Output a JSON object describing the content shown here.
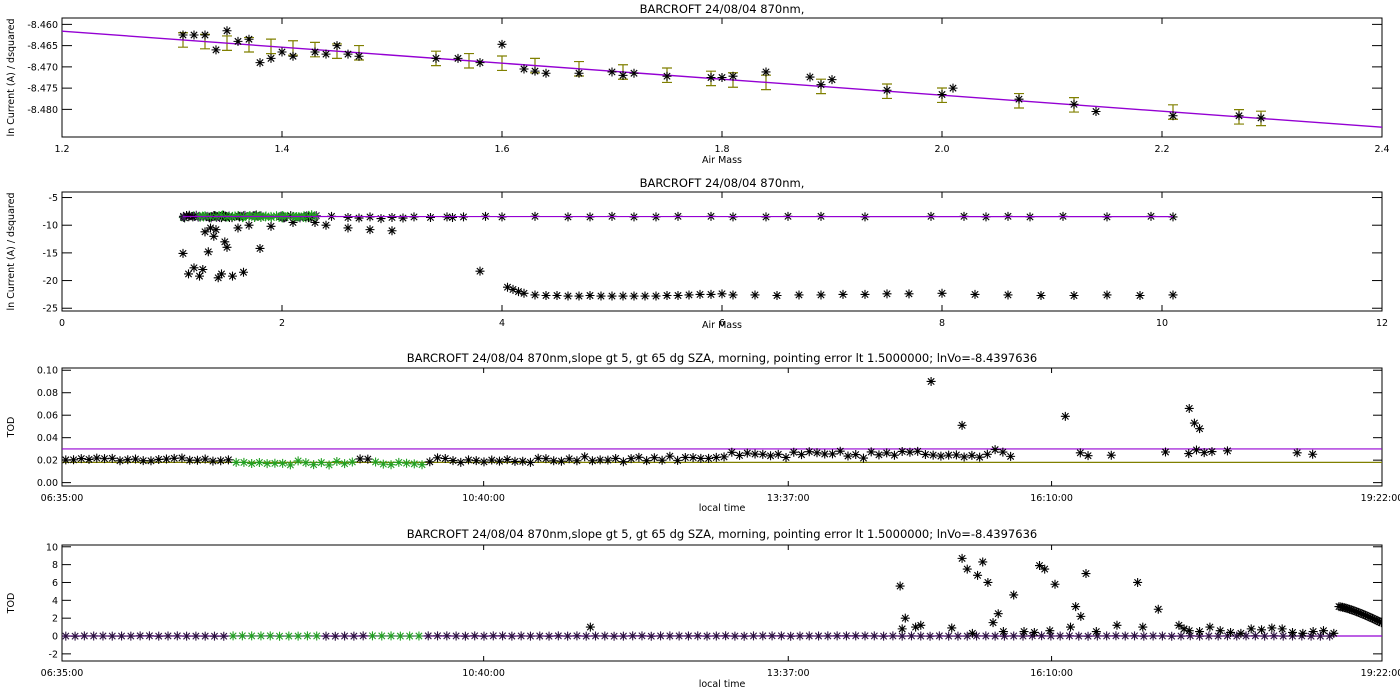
{
  "colors": {
    "axis": "#000000",
    "fit": "#9400d3",
    "errorbar": "#808000",
    "green": "#22a022",
    "olive": "#808000",
    "points": "#000000"
  },
  "chart_data": [
    {
      "id": "p1",
      "type": "scatter",
      "title": "BARCROFT 24/08/04 870nm,",
      "xlabel": "Air Mass",
      "ylabel": "ln Current (A) / dsquared",
      "xlim": [
        1.2,
        2.4
      ],
      "ylim": [
        -8.4865,
        -8.4585
      ],
      "xticks": [
        1.2,
        1.4,
        1.6,
        1.8,
        2.0,
        2.2,
        2.4
      ],
      "xtick_labels": [
        "1.2",
        "1.4",
        "1.6",
        "1.8",
        "2.0",
        "2.2",
        "2.4"
      ],
      "yticks": [
        -8.48,
        -8.475,
        -8.47,
        -8.465,
        -8.46
      ],
      "ytick_labels": [
        "-8.480",
        "-8.475",
        "-8.470",
        "-8.465",
        "-8.460"
      ],
      "fit_line": {
        "x": [
          1.2,
          2.4
        ],
        "y": [
          -8.4616,
          -8.4842
        ]
      },
      "errorbars": {
        "x": [
          1.31,
          1.33,
          1.35,
          1.37,
          1.39,
          1.41,
          1.43,
          1.45,
          1.47,
          1.54,
          1.57,
          1.6,
          1.63,
          1.67,
          1.71,
          1.75,
          1.79,
          1.81,
          1.84,
          1.89,
          1.95,
          2.0,
          2.07,
          2.12,
          2.21,
          2.27,
          2.29
        ],
        "half": 0.0017
      },
      "points": {
        "x": [
          1.31,
          1.32,
          1.33,
          1.34,
          1.35,
          1.36,
          1.37,
          1.38,
          1.39,
          1.4,
          1.41,
          1.43,
          1.44,
          1.45,
          1.46,
          1.47,
          1.54,
          1.56,
          1.58,
          1.6,
          1.62,
          1.63,
          1.64,
          1.67,
          1.7,
          1.71,
          1.72,
          1.75,
          1.79,
          1.8,
          1.81,
          1.84,
          1.88,
          1.89,
          1.9,
          1.95,
          2.0,
          2.01,
          2.07,
          2.12,
          2.14,
          2.21,
          2.27,
          2.29
        ],
        "y": [
          -8.4625,
          -8.4625,
          -8.4625,
          -8.466,
          -8.4615,
          -8.464,
          -8.4635,
          -8.469,
          -8.468,
          -8.4665,
          -8.4675,
          -8.4665,
          -8.467,
          -8.465,
          -8.467,
          -8.4675,
          -8.468,
          -8.468,
          -8.469,
          -8.4647,
          -8.4705,
          -8.471,
          -8.4715,
          -8.4715,
          -8.4712,
          -8.472,
          -8.4715,
          -8.4722,
          -8.4725,
          -8.4725,
          -8.4722,
          -8.4712,
          -8.4724,
          -8.4742,
          -8.473,
          -8.4755,
          -8.4765,
          -8.475,
          -8.4776,
          -8.4788,
          -8.4805,
          -8.4815,
          -8.4815,
          -8.482
        ]
      }
    },
    {
      "id": "p2",
      "type": "scatter",
      "title": "BARCROFT 24/08/04 870nm,",
      "xlabel": "Air Mass",
      "ylabel": "ln Current (A) / dsquared",
      "xlim": [
        0,
        12
      ],
      "ylim": [
        -25.5,
        -4
      ],
      "xticks": [
        0,
        2,
        4,
        6,
        8,
        10,
        12
      ],
      "xtick_labels": [
        "0",
        "2",
        "4",
        "6",
        "8",
        "10",
        "12"
      ],
      "yticks": [
        -25,
        -20,
        -15,
        -10,
        -5
      ],
      "ytick_labels": [
        "-25",
        "-20",
        "-15",
        "-10",
        "-5"
      ],
      "fit_line": {
        "x": [
          1.1,
          10.1
        ],
        "y": [
          -8.43,
          -8.45
        ]
      },
      "series": [
        {
          "color": "black",
          "x": [
            2.45,
            2.6,
            2.7,
            2.8,
            2.9,
            3.0,
            3.1,
            3.2,
            3.35,
            3.5,
            3.55,
            3.65,
            3.85,
            4.0,
            4.3,
            4.6,
            4.8,
            5.0,
            5.2,
            5.4,
            5.6,
            5.9,
            6.1,
            6.4,
            6.6,
            6.9,
            7.3,
            7.9,
            8.2,
            8.4,
            8.6,
            8.8,
            9.1,
            9.5,
            9.9,
            10.1
          ],
          "y": [
            -8.4,
            -8.6,
            -8.7,
            -8.5,
            -8.8,
            -8.6,
            -8.7,
            -8.5,
            -8.6,
            -8.5,
            -8.6,
            -8.5,
            -8.4,
            -8.5,
            -8.4,
            -8.5,
            -8.5,
            -8.4,
            -8.5,
            -8.5,
            -8.4,
            -8.4,
            -8.5,
            -8.5,
            -8.4,
            -8.4,
            -8.5,
            -8.4,
            -8.4,
            -8.5,
            -8.4,
            -8.5,
            -8.4,
            -8.5,
            -8.4,
            -8.5
          ]
        },
        {
          "color": "black",
          "x": [
            3.8,
            4.05,
            4.1,
            4.15,
            4.2,
            4.3,
            4.4,
            4.5,
            4.6,
            4.7,
            4.8,
            4.9,
            5.0,
            5.1,
            5.2,
            5.3,
            5.4,
            5.5,
            5.6,
            5.7,
            5.8,
            5.9,
            6.0,
            6.1,
            6.3,
            6.5,
            6.7,
            6.9,
            7.1,
            7.3,
            7.5,
            7.7,
            8.0,
            8.3,
            8.6,
            8.9,
            9.2,
            9.5,
            9.8,
            10.1
          ],
          "y": [
            -18.3,
            -21.2,
            -21.6,
            -22.0,
            -22.3,
            -22.6,
            -22.7,
            -22.7,
            -22.8,
            -22.8,
            -22.7,
            -22.8,
            -22.8,
            -22.8,
            -22.8,
            -22.8,
            -22.8,
            -22.7,
            -22.7,
            -22.6,
            -22.5,
            -22.5,
            -22.4,
            -22.6,
            -22.6,
            -22.7,
            -22.6,
            -22.6,
            -22.5,
            -22.5,
            -22.4,
            -22.4,
            -22.3,
            -22.5,
            -22.6,
            -22.7,
            -22.7,
            -22.6,
            -22.7,
            -22.6
          ]
        },
        {
          "color": "black",
          "x": [
            1.1,
            1.15,
            1.2,
            1.25,
            1.28,
            1.3,
            1.33,
            1.35,
            1.38,
            1.4,
            1.42,
            1.45,
            1.48,
            1.5,
            1.55,
            1.6,
            1.65,
            1.7,
            1.8,
            1.9,
            2.1,
            2.3,
            2.4,
            2.6,
            2.8,
            3.0
          ],
          "y": [
            -15.1,
            -18.8,
            -17.7,
            -19.2,
            -18.0,
            -11.2,
            -14.8,
            -10.5,
            -12.0,
            -10.8,
            -19.5,
            -18.8,
            -13.0,
            -14.0,
            -19.2,
            -10.5,
            -18.5,
            -10.0,
            -14.2,
            -10.2,
            -9.5,
            -9.5,
            -10.0,
            -10.5,
            -10.8,
            -11.0
          ]
        },
        {
          "color": "green",
          "x": [
            1.25,
            1.3,
            1.35,
            1.4,
            1.45,
            1.5,
            1.55,
            1.6,
            1.65,
            1.7,
            1.75,
            1.8,
            1.85,
            1.9,
            1.95,
            2.0,
            2.05,
            2.1,
            2.15,
            2.2,
            2.25,
            2.3
          ],
          "y": [
            -8.4,
            -8.3,
            -8.5,
            -8.4,
            -8.3,
            -8.5,
            -8.4,
            -8.3,
            -8.5,
            -8.4,
            -8.6,
            -8.3,
            -8.5,
            -8.4,
            -8.3,
            -8.5,
            -8.4,
            -8.4,
            -8.5,
            -8.3,
            -8.4,
            -8.4
          ]
        }
      ]
    },
    {
      "id": "p3",
      "type": "scatter",
      "title": "BARCROFT 24/08/04 870nm,slope gt 5, gt 65 dg SZA, morning, pointing error lt 1.5000000; lnVo=-8.4397636",
      "xlabel": "local time",
      "ylabel": "TOD",
      "xlim": [
        6.5833,
        19.3667
      ],
      "ylim": [
        -0.003,
        0.102
      ],
      "xticks": [
        6.5833,
        10.6667,
        13.6167,
        16.1667,
        19.3667
      ],
      "xtick_labels": [
        "06:35:00",
        "10:40:00",
        "13:37:00",
        "16:10:00",
        "19:22:00"
      ],
      "yticks": [
        0,
        0.02,
        0.04,
        0.06,
        0.08,
        0.1
      ],
      "ytick_labels": [
        "0.00",
        "0.02",
        "0.04",
        "0.06",
        "0.08",
        "0.10"
      ],
      "hlines": [
        {
          "y": 0.03,
          "color": "purple"
        },
        {
          "y": 0.018,
          "color": "olive"
        }
      ],
      "outliers": {
        "x": [
          15.0,
          15.3,
          16.3,
          17.5,
          17.55,
          17.6
        ],
        "y": [
          0.09,
          0.051,
          0.059,
          0.066,
          0.053,
          0.048
        ]
      }
    },
    {
      "id": "p4",
      "type": "scatter",
      "title": "BARCROFT 24/08/04 870nm,slope gt 5, gt 65 dg SZA, morning, pointing error lt 1.5000000; lnVo=-8.4397636",
      "xlabel": "local time",
      "ylabel": "TOD",
      "xlim": [
        6.5833,
        19.3667
      ],
      "ylim": [
        -2.8,
        10.2
      ],
      "xticks": [
        6.5833,
        10.6667,
        13.6167,
        16.1667,
        19.3667
      ],
      "xtick_labels": [
        "06:35:00",
        "10:40:00",
        "13:37:00",
        "16:10:00",
        "19:22:00"
      ],
      "yticks": [
        -2,
        0,
        2,
        4,
        6,
        8,
        10
      ],
      "ytick_labels": [
        "-2",
        "0",
        "2",
        "4",
        "6",
        "8",
        "10"
      ],
      "hlines": [
        {
          "y": 0.0,
          "color": "purple"
        }
      ],
      "scatter": {
        "x": [
          11.7,
          14.7,
          14.72,
          14.75,
          14.85,
          14.9,
          15.2,
          15.3,
          15.35,
          15.4,
          15.45,
          15.5,
          15.55,
          15.6,
          15.65,
          15.7,
          15.8,
          15.9,
          16.0,
          16.05,
          16.1,
          16.15,
          16.2,
          16.35,
          16.4,
          16.45,
          16.5,
          16.6,
          16.8,
          17.0,
          17.05,
          17.2,
          17.4,
          17.45,
          17.5,
          17.6,
          17.7,
          17.8,
          17.9,
          18.0,
          18.1,
          18.2,
          18.3,
          18.4,
          18.5,
          18.6,
          18.7,
          18.8,
          18.9
        ],
        "y": [
          1.0,
          5.6,
          0.8,
          2.0,
          1.0,
          1.2,
          0.9,
          8.7,
          7.5,
          0.3,
          6.8,
          8.3,
          6.0,
          1.5,
          2.5,
          0.5,
          4.6,
          0.5,
          0.4,
          7.9,
          7.5,
          0.6,
          5.8,
          1.0,
          3.3,
          2.2,
          7.0,
          0.5,
          1.2,
          6.0,
          1.0,
          3.0,
          1.2,
          0.8,
          0.6,
          0.5,
          1.0,
          0.6,
          0.4,
          0.3,
          0.8,
          0.7,
          0.9,
          0.8,
          0.4,
          0.3,
          0.5,
          0.6,
          0.3
        ]
      },
      "tail": {
        "x_start": 18.95,
        "x_end": 19.36,
        "y_start": 3.3,
        "y_end": 1.5
      }
    }
  ]
}
